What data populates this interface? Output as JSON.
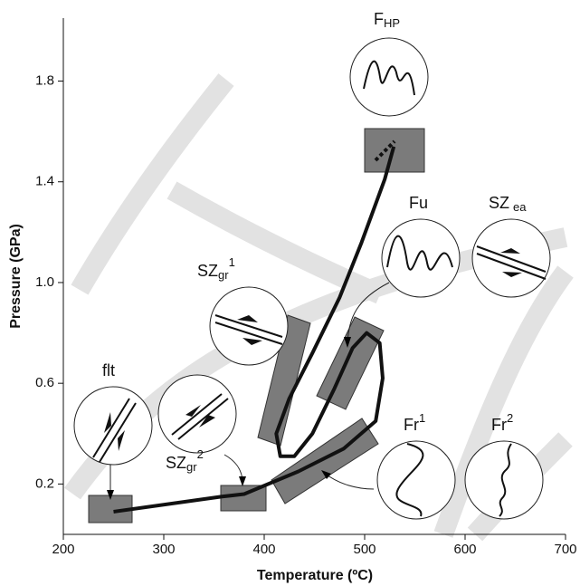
{
  "chart_data": {
    "type": "line",
    "xlabel": "Temperature (ºC)",
    "ylabel": "Pressure (GPa)",
    "xlim": [
      200,
      700
    ],
    "xticks": [
      200,
      300,
      400,
      500,
      600,
      700
    ],
    "ylim": [
      0,
      2.05
    ],
    "yticks": [
      0.2,
      0.6,
      {
        "value": 1,
        "label": "1.0"
      },
      1.4,
      1.8
    ],
    "series": [
      {
        "color": "#111111",
        "x": [
          250,
          358,
          380,
          434,
          479,
          511,
          518,
          515,
          502,
          488,
          470,
          448,
          430,
          416,
          412,
          425,
          448,
          475,
          497,
          520,
          529
        ],
        "values": [
          0.09,
          0.15,
          0.16,
          0.25,
          0.34,
          0.45,
          0.62,
          0.76,
          0.8,
          0.74,
          0.58,
          0.4,
          0.31,
          0.31,
          0.4,
          0.54,
          0.72,
          0.94,
          1.16,
          1.41,
          1.54
        ]
      }
    ],
    "annotations": [
      {
        "text": "F",
        "sub": "HP"
      },
      {
        "text": "Fu"
      },
      {
        "text": "SZ",
        "sub": "ea"
      },
      {
        "text": "SZ",
        "sub": "gr",
        "sup": "1"
      },
      {
        "text": "flt"
      },
      {
        "text": "SZ",
        "sub": "gr",
        "sup": "2"
      },
      {
        "text": "Fr",
        "sup": "1"
      },
      {
        "text": "Fr",
        "sup": "2"
      }
    ]
  }
}
